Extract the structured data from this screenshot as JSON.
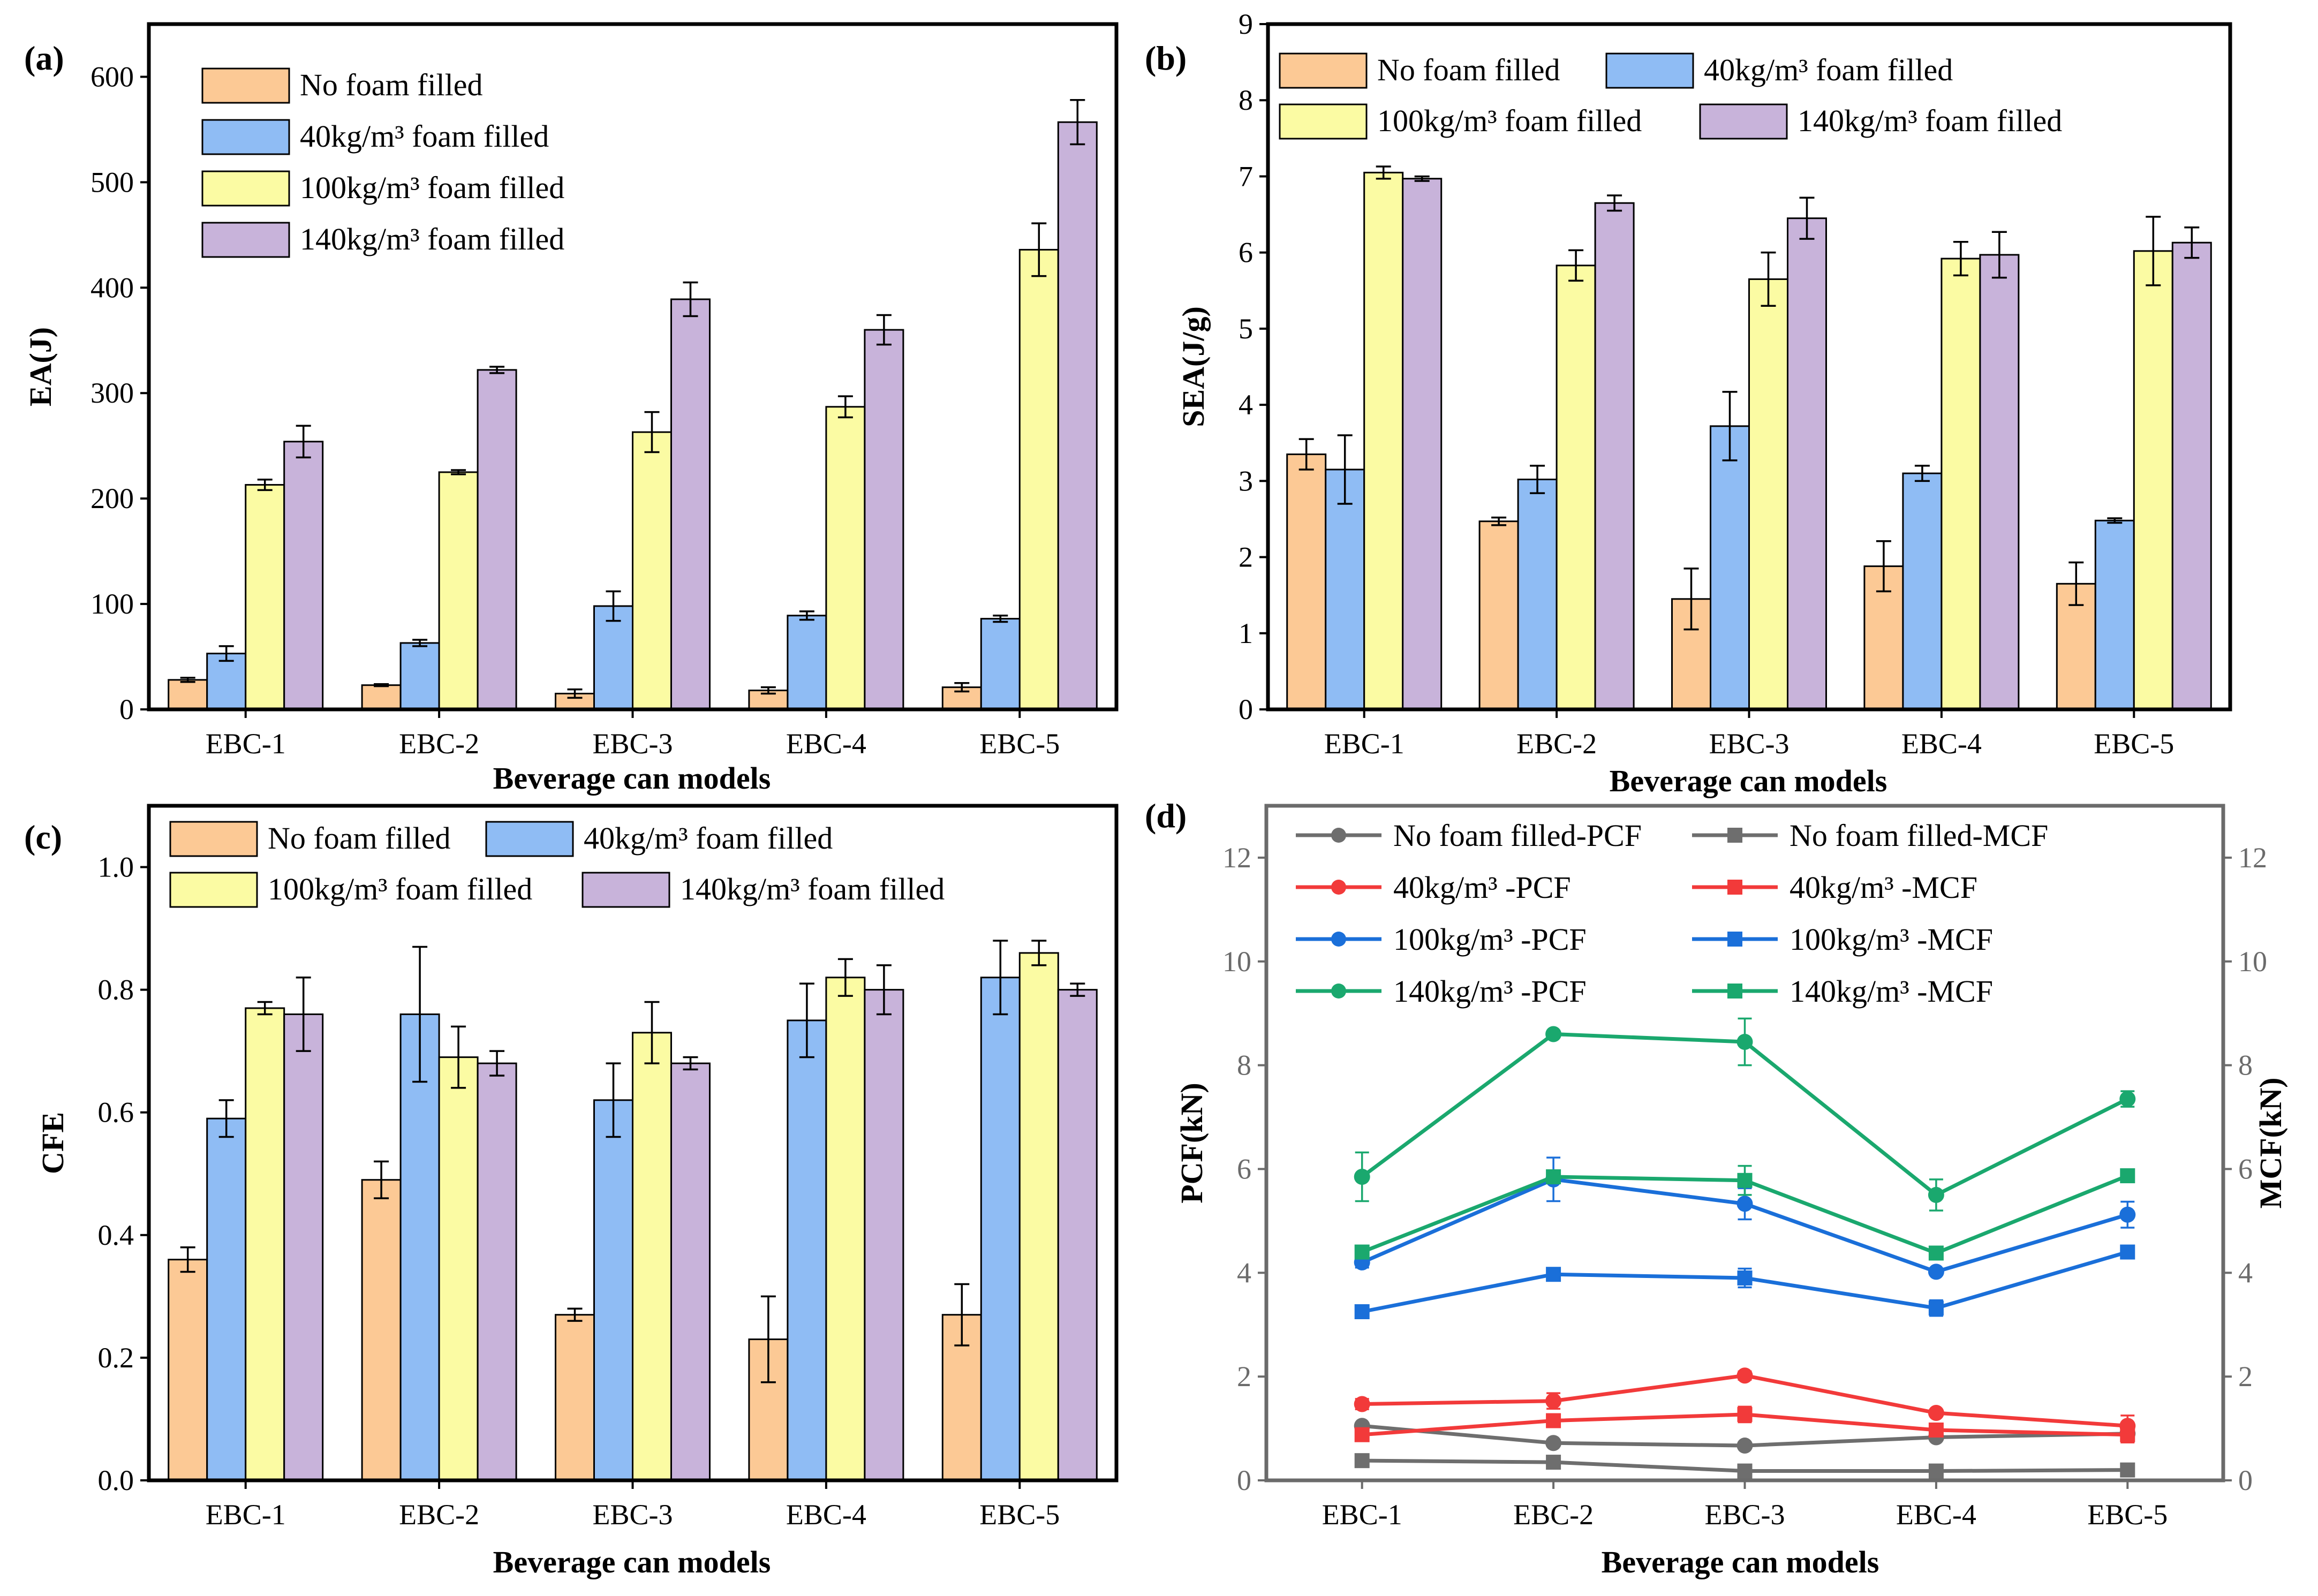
{
  "legend_labels": {
    "nofoam": "No foam filled",
    "f40": "40kg/m³ foam filled",
    "f100": "100kg/m³ foam filled",
    "f140": "140kg/m³ foam filled"
  },
  "colors": {
    "nofoam": "#fcc995",
    "f40": "#8fbcf4",
    "f100": "#fbfba3",
    "f140": "#c8b3da",
    "line_nofoam": "#6e6e6e",
    "line_40": "#f23a3a",
    "line_100": "#1a6fd9",
    "line_140": "#1aa86e"
  },
  "chart_data": [
    {
      "id": "a",
      "panel_label": "(a)",
      "type": "bar",
      "title": "",
      "xlabel": "Beverage can models",
      "ylabel": "EA(J)",
      "ylim": [
        0,
        650
      ],
      "yticks": [
        0,
        100,
        200,
        300,
        400,
        500,
        600
      ],
      "categories": [
        "EBC-1",
        "EBC-2",
        "EBC-3",
        "EBC-4",
        "EBC-5"
      ],
      "series": [
        {
          "name": "No foam filled",
          "key": "nofoam",
          "values": [
            28,
            23,
            15,
            18,
            21
          ],
          "errors": [
            2,
            1,
            4,
            3,
            4
          ]
        },
        {
          "name": "40kg/m³ foam filled",
          "key": "f40",
          "values": [
            53,
            63,
            98,
            89,
            86
          ],
          "errors": [
            7,
            3,
            14,
            4,
            3
          ]
        },
        {
          "name": "100kg/m³ foam filled",
          "key": "f100",
          "values": [
            213,
            225,
            263,
            287,
            436
          ],
          "errors": [
            5,
            2,
            19,
            10,
            25
          ]
        },
        {
          "name": "140kg/m³ foam filled",
          "key": "f140",
          "values": [
            254,
            322,
            389,
            360,
            557
          ],
          "errors": [
            15,
            3,
            16,
            14,
            21
          ]
        }
      ]
    },
    {
      "id": "b",
      "panel_label": "(b)",
      "type": "bar",
      "title": "",
      "xlabel": "Beverage can models",
      "ylabel": "SEA(J/g)",
      "ylim": [
        0,
        9
      ],
      "yticks": [
        0,
        1,
        2,
        3,
        4,
        5,
        6,
        7,
        8,
        9
      ],
      "categories": [
        "EBC-1",
        "EBC-2",
        "EBC-3",
        "EBC-4",
        "EBC-5"
      ],
      "series": [
        {
          "name": "No foam filled",
          "key": "nofoam",
          "values": [
            3.35,
            2.47,
            1.45,
            1.88,
            1.65
          ],
          "errors": [
            0.2,
            0.05,
            0.4,
            0.33,
            0.28
          ]
        },
        {
          "name": "40kg/m³ foam filled",
          "key": "f40",
          "values": [
            3.15,
            3.02,
            3.72,
            3.1,
            2.48
          ],
          "errors": [
            0.45,
            0.18,
            0.45,
            0.1,
            0.03
          ]
        },
        {
          "name": "100kg/m³ foam filled",
          "key": "f100",
          "values": [
            7.05,
            5.83,
            5.65,
            5.92,
            6.02
          ],
          "errors": [
            0.08,
            0.2,
            0.35,
            0.22,
            0.45
          ]
        },
        {
          "name": "140kg/m³ foam filled",
          "key": "f140",
          "values": [
            6.97,
            6.65,
            6.45,
            5.97,
            6.13
          ],
          "errors": [
            0.03,
            0.1,
            0.27,
            0.3,
            0.2
          ]
        }
      ]
    },
    {
      "id": "c",
      "panel_label": "(c)",
      "type": "bar",
      "title": "",
      "xlabel": "Beverage can models",
      "ylabel": "CFE",
      "ylim": [
        0,
        1.1
      ],
      "yticks": [
        0.0,
        0.2,
        0.4,
        0.6,
        0.8,
        1.0
      ],
      "ytick_labels": [
        "0.0",
        "0.2",
        "0.4",
        "0.6",
        "0.8",
        "1.0"
      ],
      "categories": [
        "EBC-1",
        "EBC-2",
        "EBC-3",
        "EBC-4",
        "EBC-5"
      ],
      "series": [
        {
          "name": "No foam filled",
          "key": "nofoam",
          "values": [
            0.36,
            0.49,
            0.27,
            0.23,
            0.27
          ],
          "errors": [
            0.02,
            0.03,
            0.01,
            0.07,
            0.05
          ]
        },
        {
          "name": "40kg/m³ foam filled",
          "key": "f40",
          "values": [
            0.59,
            0.76,
            0.62,
            0.75,
            0.82
          ],
          "errors": [
            0.03,
            0.11,
            0.06,
            0.06,
            0.06
          ]
        },
        {
          "name": "100kg/m³ foam filled",
          "key": "f100",
          "values": [
            0.77,
            0.69,
            0.73,
            0.82,
            0.86
          ],
          "errors": [
            0.01,
            0.05,
            0.05,
            0.03,
            0.02
          ]
        },
        {
          "name": "140kg/m³ foam filled",
          "key": "f140",
          "values": [
            0.76,
            0.68,
            0.68,
            0.8,
            0.8
          ],
          "errors": [
            0.06,
            0.02,
            0.01,
            0.04,
            0.01
          ]
        }
      ]
    },
    {
      "id": "d",
      "panel_label": "(d)",
      "type": "line",
      "title": "",
      "xlabel": "Beverage can models",
      "ylabel": "PCF(kN)",
      "y2label": "MCF(kN)",
      "ylim": [
        0,
        13
      ],
      "y2lim": [
        0,
        13
      ],
      "yticks": [
        0,
        2,
        4,
        6,
        8,
        10,
        12
      ],
      "categories": [
        "EBC-1",
        "EBC-2",
        "EBC-3",
        "EBC-4",
        "EBC-5"
      ],
      "series": [
        {
          "name": "No foam filled-PCF",
          "color_key": "line_nofoam",
          "marker": "circle",
          "values": [
            1.05,
            0.72,
            0.67,
            0.83,
            0.9
          ],
          "errors": [
            0.05,
            0.05,
            0.05,
            0.05,
            0.05
          ]
        },
        {
          "name": "No foam filled-MCF",
          "color_key": "line_nofoam",
          "marker": "square",
          "values": [
            0.38,
            0.35,
            0.18,
            0.18,
            0.2
          ],
          "errors": [
            0.03,
            0.03,
            0.03,
            0.03,
            0.03
          ]
        },
        {
          "name": "40kg/m³ -PCF",
          "color_key": "line_40",
          "marker": "circle",
          "values": [
            1.47,
            1.53,
            2.02,
            1.3,
            1.05
          ],
          "errors": [
            0.1,
            0.15,
            0.08,
            0.06,
            0.2
          ]
        },
        {
          "name": "40kg/m³ -MCF",
          "color_key": "line_40",
          "marker": "square",
          "values": [
            0.88,
            1.15,
            1.27,
            0.97,
            0.88
          ],
          "errors": [
            0.08,
            0.1,
            0.15,
            0.06,
            0.15
          ]
        },
        {
          "name": "100kg/m³ -PCF",
          "color_key": "line_100",
          "marker": "circle",
          "values": [
            4.2,
            5.8,
            5.33,
            4.02,
            5.12
          ],
          "errors": [
            0.1,
            0.42,
            0.3,
            0.06,
            0.25
          ]
        },
        {
          "name": "100kg/m³ -MCF",
          "color_key": "line_100",
          "marker": "square",
          "values": [
            3.25,
            3.97,
            3.9,
            3.32,
            4.4
          ],
          "errors": [
            0.05,
            0.06,
            0.18,
            0.15,
            0.06
          ]
        },
        {
          "name": "140kg/m³ -PCF",
          "color_key": "line_140",
          "marker": "circle",
          "values": [
            5.85,
            8.6,
            8.45,
            5.5,
            7.35
          ],
          "errors": [
            0.47,
            0.06,
            0.45,
            0.3,
            0.15
          ]
        },
        {
          "name": "140kg/m³ -MCF",
          "color_key": "line_140",
          "marker": "square",
          "values": [
            4.4,
            5.85,
            5.78,
            4.38,
            5.87
          ],
          "errors": [
            0.06,
            0.1,
            0.28,
            0.1,
            0.08
          ]
        }
      ]
    }
  ]
}
